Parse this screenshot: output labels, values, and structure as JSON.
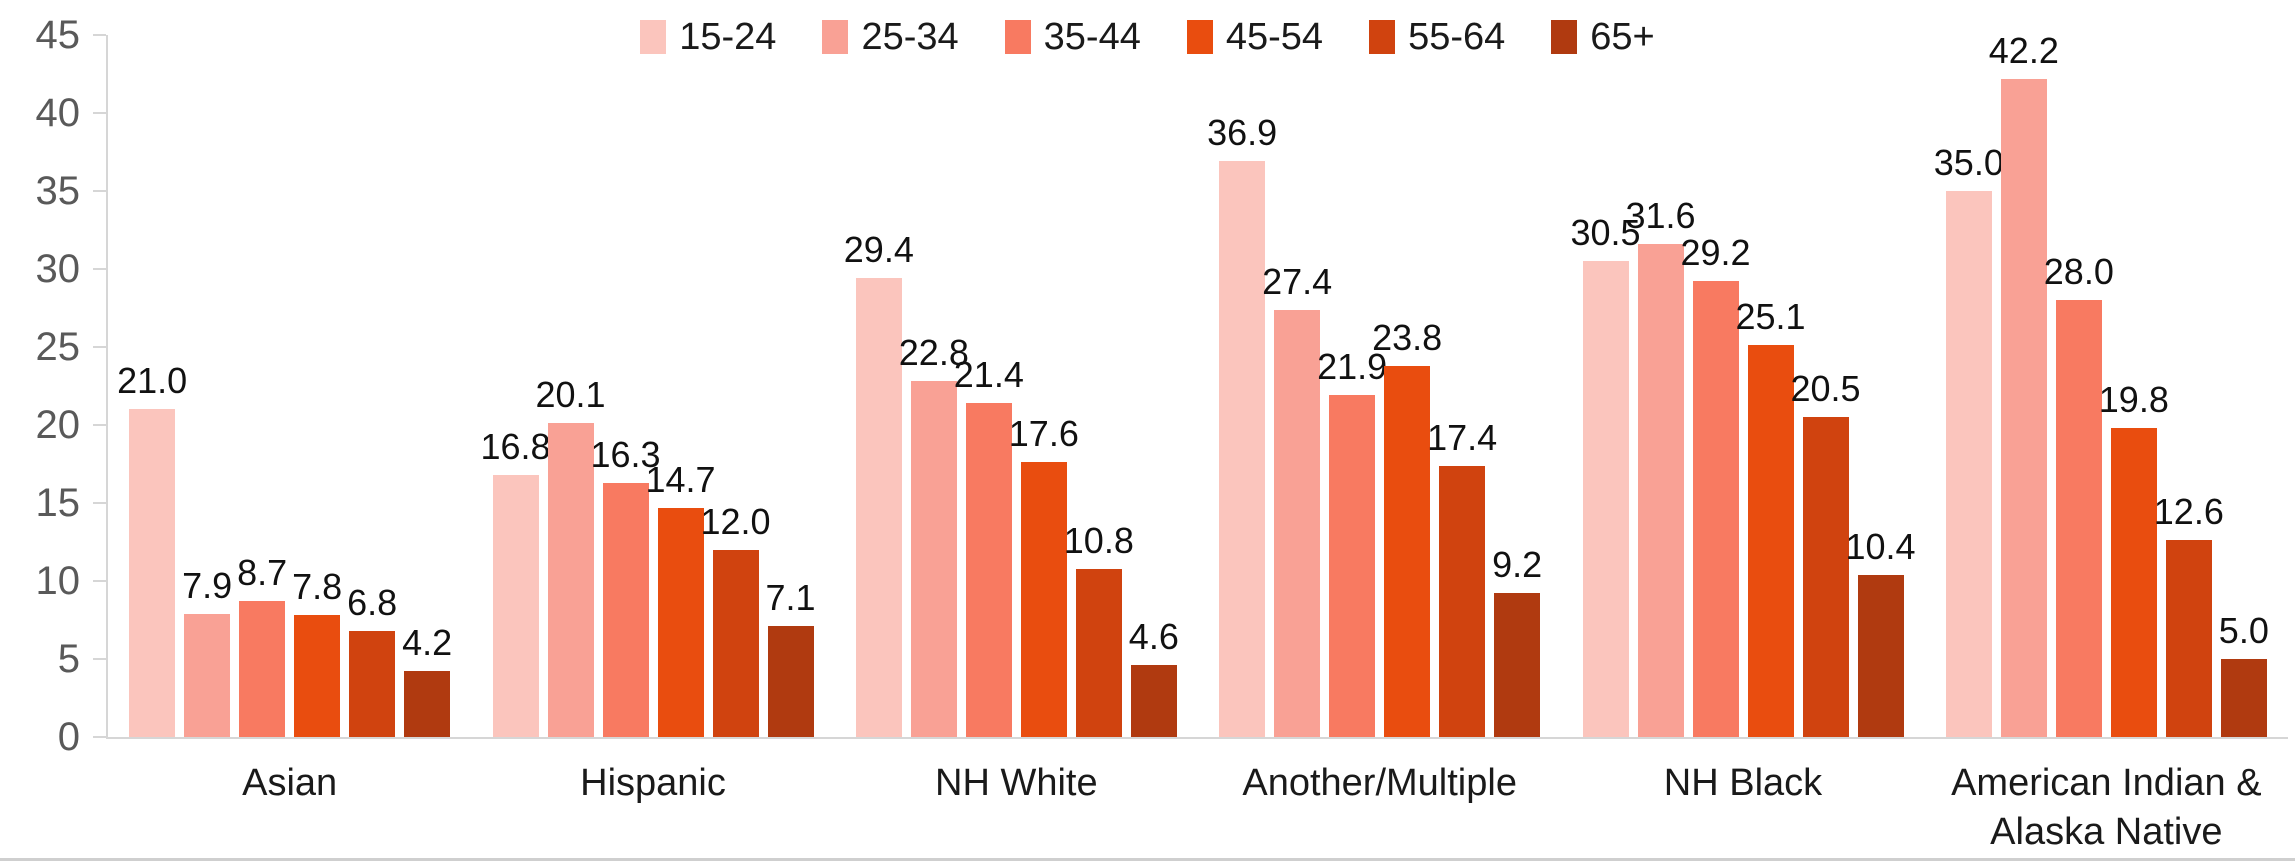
{
  "chart_data": {
    "type": "bar",
    "title": "",
    "xlabel": "",
    "ylabel": "",
    "categories": [
      "Asian",
      "Hispanic",
      "NH White",
      "Another/Multiple",
      "NH Black",
      "American Indian &\nAlaska Native"
    ],
    "series": [
      {
        "name": "15-24",
        "color": "#FBC5BD",
        "values": [
          21.0,
          16.8,
          29.4,
          36.9,
          30.5,
          35.0
        ]
      },
      {
        "name": "25-34",
        "color": "#F9A195",
        "values": [
          7.9,
          20.1,
          22.8,
          27.4,
          31.6,
          42.2
        ]
      },
      {
        "name": "35-44",
        "color": "#F87A61",
        "values": [
          8.7,
          16.3,
          21.4,
          21.9,
          29.2,
          28.0
        ]
      },
      {
        "name": "45-54",
        "color": "#E94D0F",
        "values": [
          7.8,
          14.7,
          17.6,
          23.8,
          25.1,
          19.8
        ]
      },
      {
        "name": "55-64",
        "color": "#D0430F",
        "values": [
          6.8,
          12.0,
          10.8,
          17.4,
          20.5,
          12.6
        ]
      },
      {
        "name": "65+",
        "color": "#B03A10",
        "values": [
          4.2,
          7.1,
          4.6,
          9.2,
          10.4,
          5.0
        ]
      }
    ],
    "ylim": [
      0,
      45
    ],
    "yticks": [
      0,
      5,
      10,
      15,
      20,
      25,
      30,
      35,
      40,
      45
    ],
    "grid": false,
    "legend_position": "top-center",
    "value_labels_shown": true,
    "value_label_decimals": 1
  },
  "style_colors": {
    "axis_line": "#D6D6D6",
    "axis_label": "#595959",
    "text": "#1A1A1A"
  }
}
